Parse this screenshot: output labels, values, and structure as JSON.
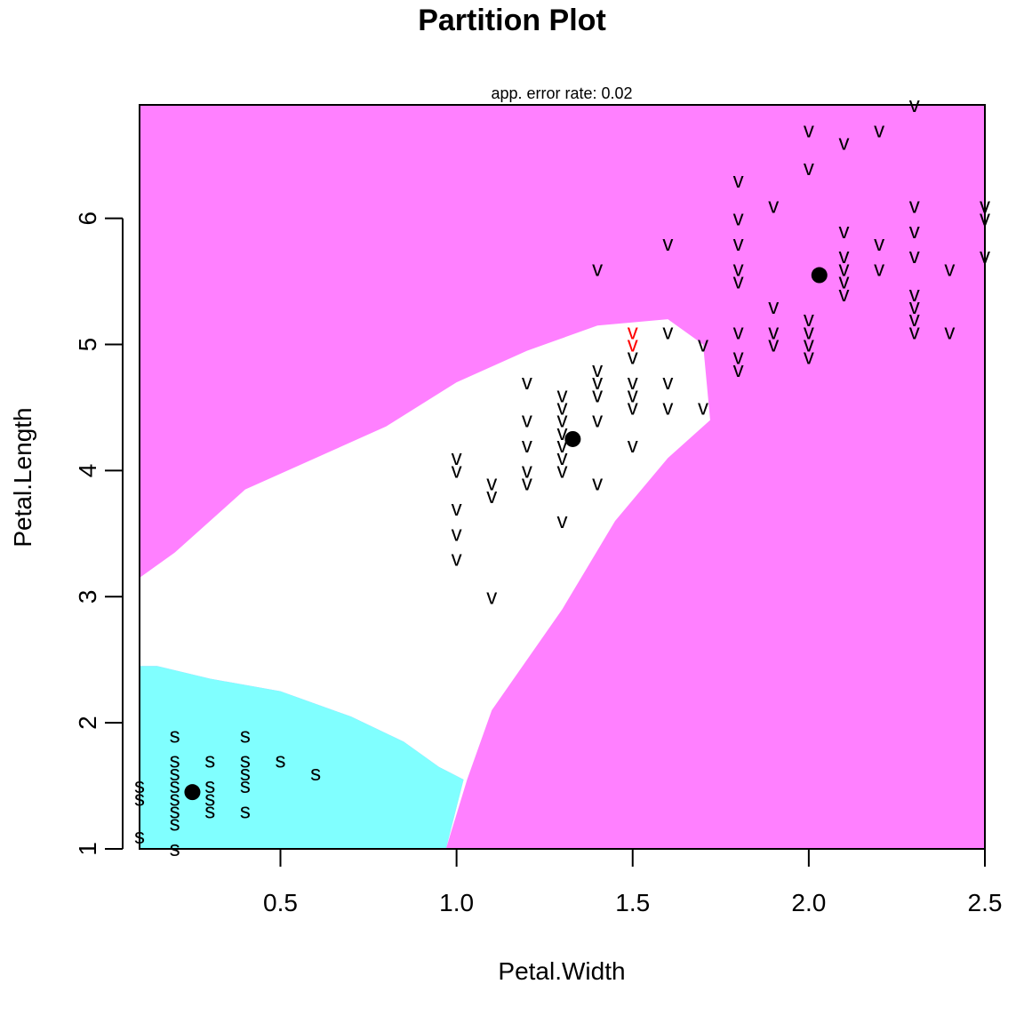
{
  "chart_data": {
    "type": "scatter",
    "title": "Partition Plot",
    "subtitle": "app. error rate: 0.02",
    "xlabel": "Petal.Width",
    "ylabel": "Petal.Length",
    "xlim": [
      0.1,
      2.5
    ],
    "ylim": [
      1,
      6.9
    ],
    "x_ticks": [
      "0.5",
      "1.0",
      "1.5",
      "2.0",
      "2.5"
    ],
    "y_ticks": [
      "1",
      "2",
      "3",
      "4",
      "5",
      "6"
    ],
    "regions": {
      "colors": {
        "s": "#80ffff",
        "c": "#ffffff",
        "v": "#ff80ff"
      },
      "s_boundary": [
        [
          0.1,
          2.45
        ],
        [
          0.15,
          2.45
        ],
        [
          0.3,
          2.35
        ],
        [
          0.5,
          2.25
        ],
        [
          0.7,
          2.05
        ],
        [
          0.85,
          1.85
        ],
        [
          0.95,
          1.65
        ],
        [
          1.02,
          1.55
        ],
        [
          0.97,
          1.0
        ]
      ],
      "c_boundary": [
        [
          0.1,
          3.15
        ],
        [
          0.2,
          3.35
        ],
        [
          0.4,
          3.85
        ],
        [
          0.6,
          4.1
        ],
        [
          0.8,
          4.35
        ],
        [
          1.0,
          4.7
        ],
        [
          1.2,
          4.95
        ],
        [
          1.4,
          5.15
        ],
        [
          1.6,
          5.2
        ],
        [
          1.7,
          5.0
        ],
        [
          1.72,
          4.4
        ],
        [
          1.6,
          4.1
        ],
        [
          1.45,
          3.6
        ],
        [
          1.3,
          2.9
        ],
        [
          1.1,
          2.1
        ],
        [
          1.03,
          1.55
        ]
      ]
    },
    "centroids": [
      {
        "class": "s",
        "x": 0.25,
        "y": 1.45
      },
      {
        "class": "c",
        "x": 1.33,
        "y": 4.25
      },
      {
        "class": "v",
        "x": 2.03,
        "y": 5.55
      }
    ],
    "points": [
      {
        "label": "s",
        "x": 0.1,
        "y": 1.5
      },
      {
        "label": "s",
        "x": 0.1,
        "y": 1.4
      },
      {
        "label": "s",
        "x": 0.1,
        "y": 1.1
      },
      {
        "label": "s",
        "x": 0.2,
        "y": 1.9
      },
      {
        "label": "s",
        "x": 0.2,
        "y": 1.7
      },
      {
        "label": "s",
        "x": 0.2,
        "y": 1.6
      },
      {
        "label": "s",
        "x": 0.2,
        "y": 1.5
      },
      {
        "label": "s",
        "x": 0.2,
        "y": 1.4
      },
      {
        "label": "s",
        "x": 0.2,
        "y": 1.3
      },
      {
        "label": "s",
        "x": 0.2,
        "y": 1.2
      },
      {
        "label": "s",
        "x": 0.2,
        "y": 1.0
      },
      {
        "label": "s",
        "x": 0.3,
        "y": 1.7
      },
      {
        "label": "s",
        "x": 0.3,
        "y": 1.5
      },
      {
        "label": "s",
        "x": 0.3,
        "y": 1.4
      },
      {
        "label": "s",
        "x": 0.3,
        "y": 1.3
      },
      {
        "label": "s",
        "x": 0.4,
        "y": 1.9
      },
      {
        "label": "s",
        "x": 0.4,
        "y": 1.7
      },
      {
        "label": "s",
        "x": 0.4,
        "y": 1.6
      },
      {
        "label": "s",
        "x": 0.4,
        "y": 1.5
      },
      {
        "label": "s",
        "x": 0.4,
        "y": 1.3
      },
      {
        "label": "s",
        "x": 0.5,
        "y": 1.7
      },
      {
        "label": "s",
        "x": 0.6,
        "y": 1.6
      },
      {
        "label": "v",
        "x": 1.0,
        "y": 4.1
      },
      {
        "label": "v",
        "x": 1.0,
        "y": 4.0
      },
      {
        "label": "v",
        "x": 1.0,
        "y": 3.7
      },
      {
        "label": "v",
        "x": 1.0,
        "y": 3.5
      },
      {
        "label": "v",
        "x": 1.0,
        "y": 3.3
      },
      {
        "label": "v",
        "x": 1.1,
        "y": 3.9
      },
      {
        "label": "v",
        "x": 1.1,
        "y": 3.8
      },
      {
        "label": "v",
        "x": 1.1,
        "y": 3.0
      },
      {
        "label": "v",
        "x": 1.2,
        "y": 4.7
      },
      {
        "label": "v",
        "x": 1.2,
        "y": 4.4
      },
      {
        "label": "v",
        "x": 1.2,
        "y": 4.2
      },
      {
        "label": "v",
        "x": 1.2,
        "y": 4.0
      },
      {
        "label": "v",
        "x": 1.2,
        "y": 3.9
      },
      {
        "label": "v",
        "x": 1.3,
        "y": 4.6
      },
      {
        "label": "v",
        "x": 1.3,
        "y": 4.5
      },
      {
        "label": "v",
        "x": 1.3,
        "y": 4.4
      },
      {
        "label": "v",
        "x": 1.3,
        "y": 4.3
      },
      {
        "label": "v",
        "x": 1.3,
        "y": 4.2
      },
      {
        "label": "v",
        "x": 1.3,
        "y": 4.1
      },
      {
        "label": "v",
        "x": 1.3,
        "y": 4.0
      },
      {
        "label": "v",
        "x": 1.3,
        "y": 3.6
      },
      {
        "label": "v",
        "x": 1.4,
        "y": 5.6
      },
      {
        "label": "v",
        "x": 1.4,
        "y": 4.8
      },
      {
        "label": "v",
        "x": 1.4,
        "y": 4.7
      },
      {
        "label": "v",
        "x": 1.4,
        "y": 4.6
      },
      {
        "label": "v",
        "x": 1.4,
        "y": 4.4
      },
      {
        "label": "v",
        "x": 1.4,
        "y": 3.9
      },
      {
        "label": "v",
        "x": 1.5,
        "y": 5.1,
        "color": "#ff0000"
      },
      {
        "label": "v",
        "x": 1.5,
        "y": 5.0,
        "color": "#ff0000"
      },
      {
        "label": "v",
        "x": 1.5,
        "y": 4.9
      },
      {
        "label": "v",
        "x": 1.5,
        "y": 4.7
      },
      {
        "label": "v",
        "x": 1.5,
        "y": 4.6
      },
      {
        "label": "v",
        "x": 1.5,
        "y": 4.5
      },
      {
        "label": "v",
        "x": 1.5,
        "y": 4.2
      },
      {
        "label": "v",
        "x": 1.6,
        "y": 5.8
      },
      {
        "label": "v",
        "x": 1.6,
        "y": 5.1
      },
      {
        "label": "v",
        "x": 1.6,
        "y": 4.7
      },
      {
        "label": "v",
        "x": 1.6,
        "y": 4.5
      },
      {
        "label": "v",
        "x": 1.7,
        "y": 5.0
      },
      {
        "label": "v",
        "x": 1.7,
        "y": 4.5
      },
      {
        "label": "v",
        "x": 1.8,
        "y": 6.3
      },
      {
        "label": "v",
        "x": 1.8,
        "y": 6.0
      },
      {
        "label": "v",
        "x": 1.8,
        "y": 5.8
      },
      {
        "label": "v",
        "x": 1.8,
        "y": 5.6
      },
      {
        "label": "v",
        "x": 1.8,
        "y": 5.5
      },
      {
        "label": "v",
        "x": 1.8,
        "y": 5.1
      },
      {
        "label": "v",
        "x": 1.8,
        "y": 4.9
      },
      {
        "label": "v",
        "x": 1.8,
        "y": 4.8
      },
      {
        "label": "v",
        "x": 1.9,
        "y": 6.1
      },
      {
        "label": "v",
        "x": 1.9,
        "y": 5.3
      },
      {
        "label": "v",
        "x": 1.9,
        "y": 5.1
      },
      {
        "label": "v",
        "x": 1.9,
        "y": 5.0
      },
      {
        "label": "v",
        "x": 2.0,
        "y": 6.7
      },
      {
        "label": "v",
        "x": 2.0,
        "y": 6.4
      },
      {
        "label": "v",
        "x": 2.0,
        "y": 5.2
      },
      {
        "label": "v",
        "x": 2.0,
        "y": 5.1
      },
      {
        "label": "v",
        "x": 2.0,
        "y": 5.0
      },
      {
        "label": "v",
        "x": 2.0,
        "y": 4.9
      },
      {
        "label": "v",
        "x": 2.1,
        "y": 6.6
      },
      {
        "label": "v",
        "x": 2.1,
        "y": 5.9
      },
      {
        "label": "v",
        "x": 2.1,
        "y": 5.7
      },
      {
        "label": "v",
        "x": 2.1,
        "y": 5.6
      },
      {
        "label": "v",
        "x": 2.1,
        "y": 5.5
      },
      {
        "label": "v",
        "x": 2.1,
        "y": 5.4
      },
      {
        "label": "v",
        "x": 2.2,
        "y": 6.7
      },
      {
        "label": "v",
        "x": 2.2,
        "y": 5.8
      },
      {
        "label": "v",
        "x": 2.2,
        "y": 5.6
      },
      {
        "label": "v",
        "x": 2.3,
        "y": 6.9
      },
      {
        "label": "v",
        "x": 2.3,
        "y": 6.1
      },
      {
        "label": "v",
        "x": 2.3,
        "y": 5.9
      },
      {
        "label": "v",
        "x": 2.3,
        "y": 5.7
      },
      {
        "label": "v",
        "x": 2.3,
        "y": 5.4
      },
      {
        "label": "v",
        "x": 2.3,
        "y": 5.3
      },
      {
        "label": "v",
        "x": 2.3,
        "y": 5.2
      },
      {
        "label": "v",
        "x": 2.3,
        "y": 5.1
      },
      {
        "label": "v",
        "x": 2.4,
        "y": 5.6
      },
      {
        "label": "v",
        "x": 2.4,
        "y": 5.1
      },
      {
        "label": "v",
        "x": 2.5,
        "y": 6.1
      },
      {
        "label": "v",
        "x": 2.5,
        "y": 6.0
      },
      {
        "label": "v",
        "x": 2.5,
        "y": 5.7
      }
    ]
  }
}
